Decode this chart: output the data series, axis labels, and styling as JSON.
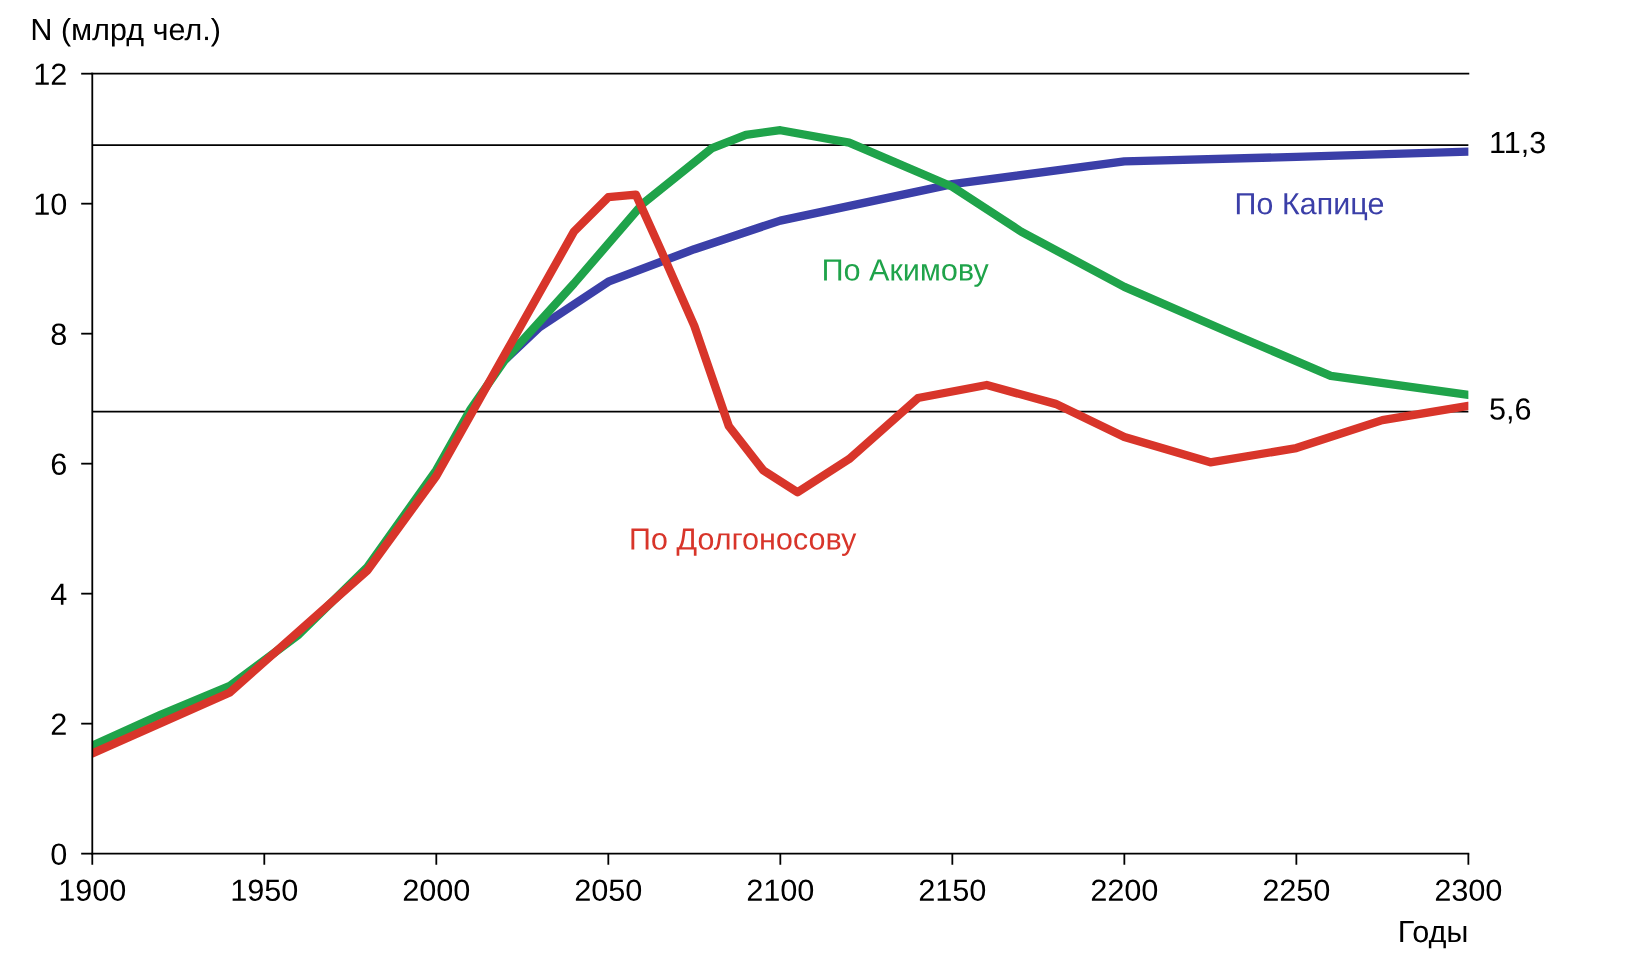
{
  "chart_data": {
    "type": "line",
    "xlabel": "Годы",
    "ylabel": "N (млрд чел.)",
    "xlim": [
      1900,
      2300
    ],
    "xticks": [
      1900,
      1950,
      2000,
      2050,
      2100,
      2150,
      2200,
      2250,
      2300
    ],
    "ylim": [
      0,
      12
    ],
    "yticks": [
      0,
      2,
      4,
      6,
      8,
      10,
      12
    ],
    "grid": false,
    "legend": false,
    "ref_lines": [
      {
        "axis": "y",
        "value": 10.9,
        "color": "#000000"
      },
      {
        "axis": "y",
        "value": 6.8,
        "color": "#000000"
      }
    ],
    "annotations": [
      "11,3",
      "5,6"
    ],
    "series": [
      {
        "name": "По Капице",
        "color": "#3b3fa8",
        "x": [
          2020,
          2030,
          2050,
          2075,
          2100,
          2150,
          2200,
          2250,
          2300
        ],
        "values": [
          7.6,
          8.1,
          8.8,
          9.3,
          9.74,
          10.3,
          10.65,
          10.72,
          10.8
        ]
      },
      {
        "name": "По Акимову",
        "color": "#1fa34a",
        "x": [
          1900,
          1920,
          1940,
          1960,
          1980,
          2000,
          2010,
          2020,
          2040,
          2060,
          2080,
          2090,
          2100,
          2120,
          2150,
          2170,
          2200,
          2230,
          2260,
          2300
        ],
        "values": [
          1.66,
          2.14,
          2.58,
          3.37,
          4.41,
          5.9,
          6.84,
          7.6,
          8.77,
          10.0,
          10.85,
          11.06,
          11.13,
          10.94,
          10.26,
          9.57,
          8.72,
          8.03,
          7.35,
          7.06
        ]
      },
      {
        "name": "По Долгоносову",
        "color": "#d8352a",
        "x": [
          1900,
          1940,
          1980,
          2000,
          2020,
          2040,
          2050,
          2058,
          2065,
          2075,
          2085,
          2095,
          2105,
          2120,
          2140,
          2160,
          2180,
          2200,
          2225,
          2250,
          2275,
          2300
        ],
        "values": [
          1.54,
          2.48,
          4.36,
          5.81,
          7.69,
          9.57,
          10.1,
          10.14,
          9.32,
          8.12,
          6.58,
          5.9,
          5.56,
          6.07,
          7.01,
          7.21,
          6.92,
          6.41,
          6.02,
          6.24,
          6.67,
          6.89
        ]
      }
    ]
  }
}
